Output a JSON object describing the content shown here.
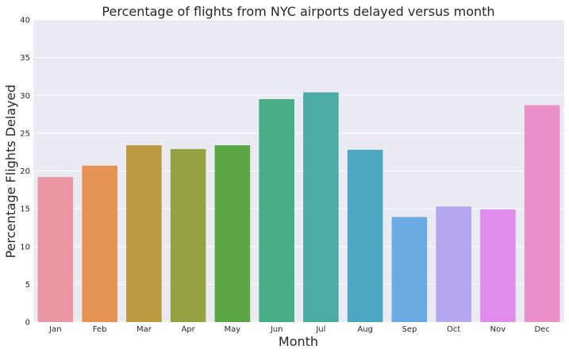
{
  "chart_data": {
    "type": "bar",
    "title": "Percentage of flights from NYC airports delayed versus month",
    "xlabel": "Month",
    "ylabel": "Percentage Flights Delayed",
    "categories": [
      "Jan",
      "Feb",
      "Mar",
      "Apr",
      "May",
      "Jun",
      "Jul",
      "Aug",
      "Sep",
      "Oct",
      "Nov",
      "Dec"
    ],
    "values": [
      19.2,
      20.7,
      23.4,
      22.9,
      23.4,
      29.5,
      30.4,
      22.8,
      13.9,
      15.3,
      14.9,
      28.7
    ],
    "ylim": [
      0,
      40
    ],
    "yticks": [
      0,
      5,
      10,
      15,
      20,
      25,
      30,
      35,
      40
    ],
    "grid": true,
    "colors": [
      "#ea96a3",
      "#e59354",
      "#bb9a42",
      "#97a246",
      "#5ba745",
      "#48ae86",
      "#4caba4",
      "#4ca8c2",
      "#6aabe3",
      "#b5a6ee",
      "#df8cec",
      "#ea8fc8"
    ],
    "background": "#eaeaf2"
  }
}
